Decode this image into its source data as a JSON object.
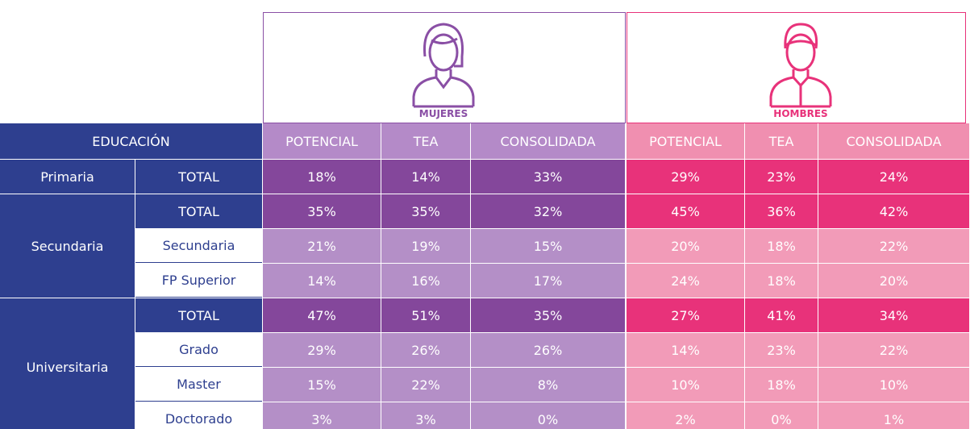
{
  "groups": [
    "MUJERES",
    "HOMBRES"
  ],
  "header": {
    "education": "EDUCACIÓN",
    "columns": [
      "POTENCIAL",
      "TEA",
      "CONSOLIDADA",
      "POTENCIAL",
      "TEA",
      "CONSOLIDADA"
    ]
  },
  "sections": [
    {
      "level": "Primaria",
      "rows": [
        {
          "sub": "TOTAL",
          "values": [
            "18%",
            "14%",
            "33%",
            "29%",
            "23%",
            "24%"
          ]
        }
      ]
    },
    {
      "level": "Secundaria",
      "rows": [
        {
          "sub": "TOTAL",
          "values": [
            "35%",
            "35%",
            "32%",
            "45%",
            "36%",
            "42%"
          ]
        },
        {
          "sub": "Secundaria",
          "values": [
            "21%",
            "19%",
            "15%",
            "20%",
            "18%",
            "22%"
          ]
        },
        {
          "sub": "FP Superior",
          "values": [
            "14%",
            "16%",
            "17%",
            "24%",
            "18%",
            "20%"
          ]
        }
      ]
    },
    {
      "level": "Universitaria",
      "rows": [
        {
          "sub": "TOTAL",
          "values": [
            "47%",
            "51%",
            "35%",
            "27%",
            "41%",
            "34%"
          ]
        },
        {
          "sub": "Grado",
          "values": [
            "29%",
            "26%",
            "26%",
            "14%",
            "23%",
            "22%"
          ]
        },
        {
          "sub": "Master",
          "values": [
            "15%",
            "22%",
            "8%",
            "10%",
            "18%",
            "10%"
          ]
        },
        {
          "sub": "Doctorado",
          "values": [
            "3%",
            "3%",
            "0%",
            "2%",
            "0%",
            "1%"
          ]
        }
      ]
    }
  ]
}
